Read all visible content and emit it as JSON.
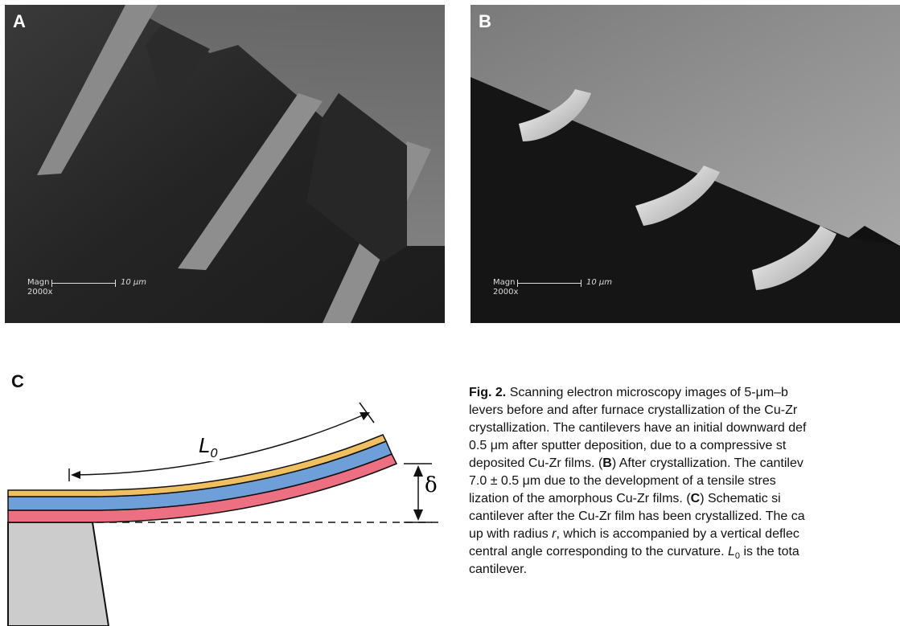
{
  "panels": {
    "a": {
      "letter": "A",
      "magn": "Magn",
      "zoom": "2000x",
      "scale": "10 μm"
    },
    "b": {
      "letter": "B",
      "magn": "Magn",
      "zoom": "2000x",
      "scale": "10 μm"
    },
    "c": {
      "letter": "C",
      "length_label": "L",
      "length_sub": "0",
      "deflection_label": "δ"
    }
  },
  "caption": {
    "fig_label": "Fig. 2.",
    "lines": [
      "Scanning electron microscopy images of 5-μm–b",
      "levers before and after furnace crystallization of the Cu-Zr",
      "crystallization. The cantilevers have an initial downward def",
      "0.5 μm after sputter deposition, due to a compressive st",
      "deposited Cu-Zr films. (",
      "7.0 ± 0.5 μm due to the development of a tensile stres",
      "lization of the amorphous Cu-Zr films. (",
      "cantilever after the Cu-Zr film has been crystallized. The ca",
      "up with radius ",
      "central angle corresponding to the curvature. ",
      "cantilever."
    ],
    "line4_bold": "B",
    "line4_rest": ") After crystallization. The cantilev",
    "line6_bold": "C",
    "line6_rest": ") Schematic si",
    "line8_r": "r",
    "line8_rest": ", which is accompanied by a vertical deflec",
    "line9_L": "L",
    "line9_sub": "0",
    "line9_rest": " is the tota"
  },
  "colors": {
    "gold_layer": "#f0c060",
    "blue_layer": "#6f9fd8",
    "pink_layer": "#ec6f82",
    "substrate": "#cccccc"
  }
}
